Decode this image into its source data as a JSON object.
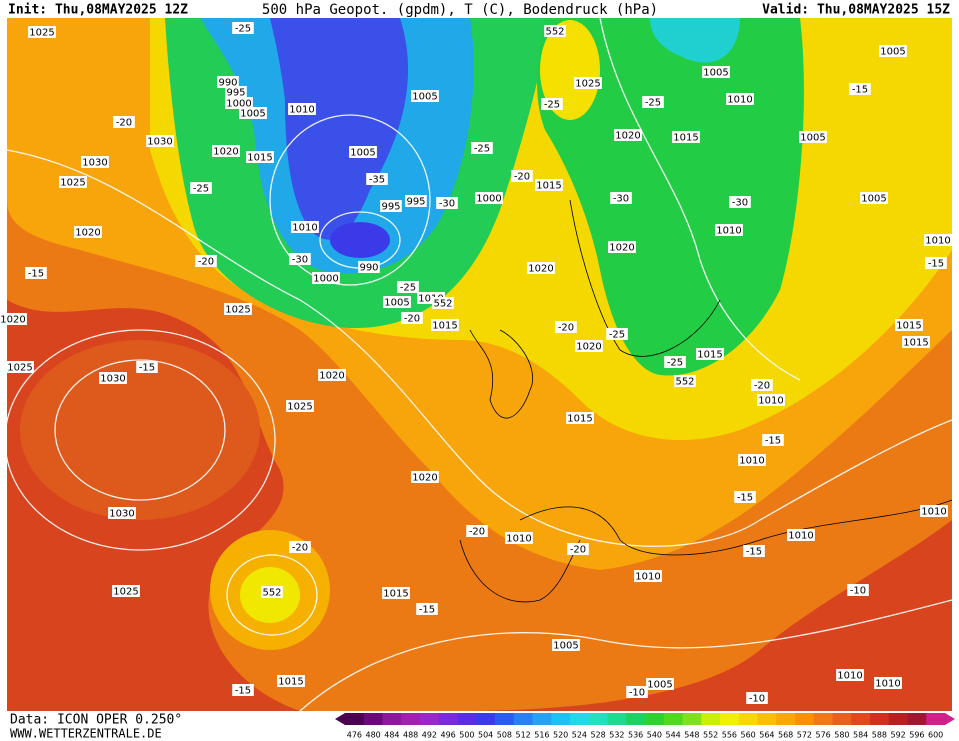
{
  "header": {
    "init": "Init: Thu,08MAY2025 12Z",
    "title": "500 hPa Geopot. (gpdm), T (C), Bodendruck (hPa)",
    "valid": "Valid: Thu,08MAY2025 15Z"
  },
  "footer": {
    "data": "Data: ICON OPER 0.250°",
    "site": "WWW.WETTERZENTRALE.DE"
  },
  "colorbar": {
    "values": [
      476,
      480,
      484,
      488,
      492,
      496,
      500,
      504,
      508,
      512,
      516,
      520,
      524,
      528,
      532,
      536,
      540,
      544,
      548,
      552,
      556,
      560,
      564,
      568,
      572,
      576,
      580,
      584,
      588,
      592,
      596,
      600
    ],
    "colors": [
      "#4b0050",
      "#6a0a78",
      "#8a1a9a",
      "#a020b0",
      "#9a28c8",
      "#7a2ad8",
      "#5a2ee0",
      "#3a3ae8",
      "#2a5cf0",
      "#2a80f0",
      "#2aa0f0",
      "#20c0f0",
      "#20d8e8",
      "#20e0c0",
      "#20d890",
      "#20d060",
      "#30d030",
      "#50d820",
      "#80e020",
      "#c8f000",
      "#f0f000",
      "#f8d800",
      "#f8c000",
      "#f8a800",
      "#f89000",
      "#f07818",
      "#e86020",
      "#e04820",
      "#d03020",
      "#b82020",
      "#a01830",
      "#d0208a"
    ]
  },
  "labels": [
    "1025",
    "1030",
    "1030",
    "1025",
    "1020",
    "-15",
    "1025",
    "1025",
    "1030",
    "-15",
    "1025",
    "1020",
    "1030",
    "1025",
    "1015",
    "-15",
    "-20",
    "552",
    "1015",
    "-15",
    "1020",
    "-20",
    "1010",
    "-20",
    "1010",
    "1005",
    "1005",
    "-10",
    "-10",
    "1010",
    "1010",
    "-10",
    "-15",
    "1010",
    "1010",
    "-15",
    "1010",
    "-15",
    "1010",
    "-20",
    "1015",
    "1015",
    "1015",
    "1010",
    "-15",
    "1005",
    "1005",
    "-15",
    "1005",
    "1010",
    "1005",
    "-25",
    "1020",
    "1015",
    "-30",
    "-30",
    "1010",
    "1020",
    "1025",
    "552",
    "-25",
    "1020",
    "1015",
    "-20",
    "1000",
    "-25",
    "1005",
    "1010",
    "1005",
    "1000",
    "995",
    "990",
    "-25",
    "1020",
    "1015",
    "1005",
    "-35",
    "995",
    "995",
    "-30",
    "1010",
    "-30",
    "990",
    "1000",
    "1005",
    "1010",
    "552",
    "-20",
    "1015",
    "-25",
    "-20",
    "-25",
    "1020",
    "-25",
    "552",
    "1015",
    "-20",
    "-25",
    "-20",
    "1020"
  ]
}
